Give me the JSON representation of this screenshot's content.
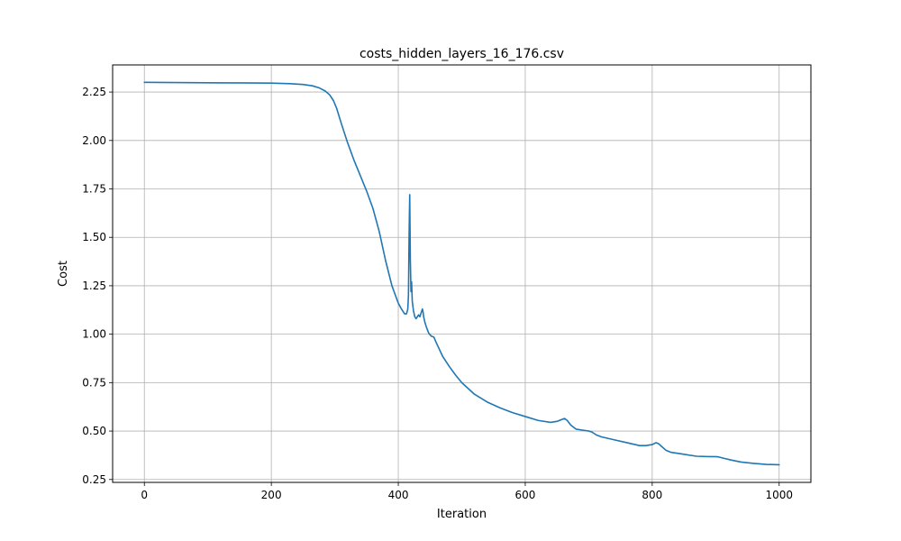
{
  "chart_data": {
    "type": "line",
    "title": "costs_hidden_layers_16_176.csv",
    "xlabel": "Iteration",
    "ylabel": "Cost",
    "xlim": [
      -50,
      1050
    ],
    "ylim": [
      0.235,
      2.39
    ],
    "xticks": [
      0,
      200,
      400,
      600,
      800,
      1000
    ],
    "xtick_labels": [
      "0",
      "200",
      "400",
      "600",
      "800",
      "1000"
    ],
    "yticks": [
      0.25,
      0.5,
      0.75,
      1.0,
      1.25,
      1.5,
      1.75,
      2.0,
      2.25
    ],
    "ytick_labels": [
      "0.25",
      "0.50",
      "0.75",
      "1.00",
      "1.25",
      "1.50",
      "1.75",
      "2.00",
      "2.25"
    ],
    "grid": true,
    "colors": {
      "series": "#1f77b4",
      "grid": "#b0b0b0",
      "axes": "#000000"
    },
    "series": [
      {
        "x": [
          0,
          50,
          100,
          150,
          200,
          230,
          250,
          265,
          275,
          285,
          292,
          298,
          303,
          310,
          320,
          330,
          340,
          350,
          360,
          370,
          380,
          390,
          400,
          405,
          410,
          413,
          415,
          416,
          417,
          418,
          419,
          420,
          421,
          422,
          424,
          426,
          428,
          430,
          432,
          434,
          436,
          437,
          438,
          439,
          440,
          442,
          445,
          448,
          452,
          456,
          460,
          465,
          470,
          480,
          490,
          500,
          520,
          540,
          560,
          580,
          600,
          620,
          640,
          650,
          658,
          662,
          666,
          672,
          680,
          690,
          700,
          705,
          712,
          720,
          740,
          760,
          780,
          790,
          800,
          806,
          810,
          815,
          822,
          830,
          850,
          870,
          890,
          900,
          905,
          912,
          925,
          940,
          960,
          980,
          1000
        ],
        "y": [
          2.3,
          2.299,
          2.298,
          2.297,
          2.296,
          2.293,
          2.289,
          2.282,
          2.272,
          2.255,
          2.235,
          2.205,
          2.165,
          2.09,
          1.99,
          1.9,
          1.82,
          1.74,
          1.65,
          1.53,
          1.38,
          1.25,
          1.16,
          1.13,
          1.105,
          1.105,
          1.13,
          1.2,
          1.5,
          1.72,
          1.38,
          1.22,
          1.27,
          1.17,
          1.12,
          1.09,
          1.08,
          1.09,
          1.1,
          1.09,
          1.11,
          1.12,
          1.13,
          1.115,
          1.09,
          1.06,
          1.03,
          1.005,
          0.99,
          0.985,
          0.955,
          0.92,
          0.885,
          0.835,
          0.79,
          0.75,
          0.69,
          0.65,
          0.62,
          0.595,
          0.575,
          0.555,
          0.545,
          0.55,
          0.56,
          0.565,
          0.555,
          0.53,
          0.51,
          0.505,
          0.5,
          0.495,
          0.48,
          0.47,
          0.455,
          0.44,
          0.425,
          0.425,
          0.43,
          0.44,
          0.435,
          0.42,
          0.4,
          0.39,
          0.38,
          0.37,
          0.368,
          0.368,
          0.366,
          0.36,
          0.35,
          0.34,
          0.333,
          0.328,
          0.326
        ]
      }
    ]
  }
}
